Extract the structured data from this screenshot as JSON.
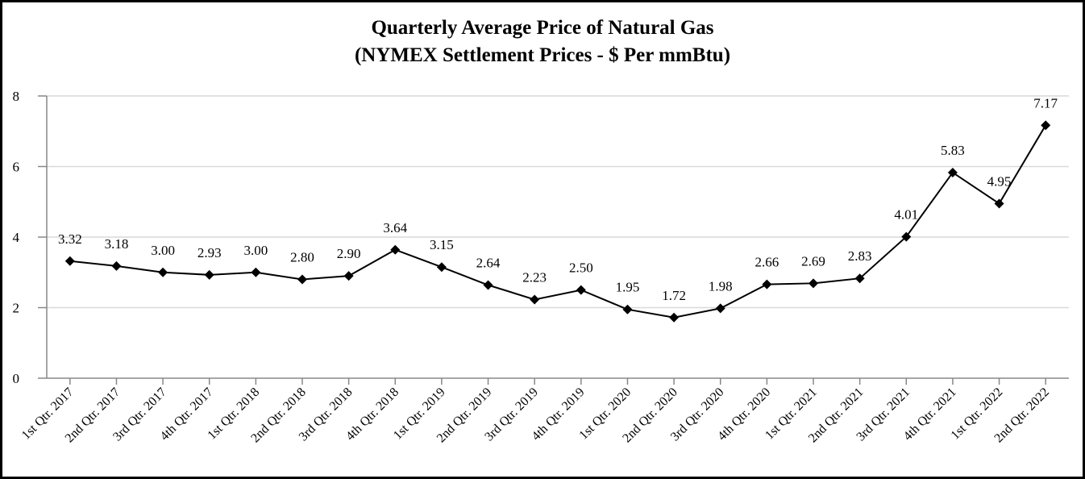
{
  "chart_data": {
    "type": "line",
    "title": "Quarterly Average Price of Natural Gas",
    "subtitle": "(NYMEX Settlement Prices - $ Per mmBtu)",
    "xlabel": "",
    "ylabel": "",
    "ylim": [
      0,
      8
    ],
    "yticks": [
      0,
      2,
      4,
      6,
      8
    ],
    "grid": true,
    "legend": "none",
    "marker": "diamond",
    "line_color": "#000000",
    "categories": [
      "1st Qtr. 2017",
      "2nd Qtr. 2017",
      "3rd Qtr. 2017",
      "4th Qtr. 2017",
      "1st Qtr. 2018",
      "2nd Qtr. 2018",
      "3rd Qtr. 2018",
      "4th Qtr. 2018",
      "1st Qtr. 2019",
      "2nd Qtr. 2019",
      "3rd Qtr. 2019",
      "4th Qtr. 2019",
      "1st Qtr. 2020",
      "2nd Qtr. 2020",
      "3rd Qtr. 2020",
      "4th Qtr. 2020",
      "1st Qtr. 2021",
      "2nd Qtr. 2021",
      "3rd Qtr. 2021",
      "4th Qtr. 2021",
      "1st Qtr. 2022",
      "2nd Qtr. 2022"
    ],
    "values": [
      3.32,
      3.18,
      3.0,
      2.93,
      3.0,
      2.8,
      2.9,
      3.64,
      3.15,
      2.64,
      2.23,
      2.5,
      1.95,
      1.72,
      1.98,
      2.66,
      2.69,
      2.83,
      4.01,
      5.83,
      4.95,
      7.17
    ],
    "data_labels": [
      "3.32",
      "3.18",
      "3.00",
      "2.93",
      "3.00",
      "2.80",
      "2.90",
      "3.64",
      "3.15",
      "2.64",
      "2.23",
      "2.50",
      "1.95",
      "1.72",
      "1.98",
      "2.66",
      "2.69",
      "2.83",
      "4.01",
      "5.83",
      "4.95",
      "7.17"
    ]
  }
}
